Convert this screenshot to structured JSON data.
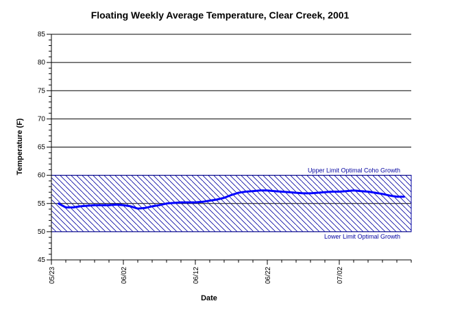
{
  "chart_data": {
    "type": "line",
    "title": "Floating Weekly Average Temperature, Clear Creek, 2001",
    "xlabel": "Date",
    "ylabel": "Temperature (F)",
    "ylim": [
      45,
      85
    ],
    "y_ticks": [
      45,
      50,
      55,
      60,
      65,
      70,
      75,
      80,
      85
    ],
    "y_tick_labels": [
      "45",
      "50",
      "55",
      "60",
      "65",
      "70",
      "75",
      "80",
      "85"
    ],
    "x_range": [
      "2001-05-23",
      "2001-07-12"
    ],
    "x_ticks": [
      "2001-05-23",
      "2001-06-02",
      "2001-06-12",
      "2001-06-22",
      "2001-07-02"
    ],
    "x_tick_labels": [
      "05/23",
      "06/02",
      "06/12",
      "06/22",
      "07/02"
    ],
    "grid": true,
    "band": {
      "lower": 50,
      "upper": 60,
      "upper_label": "Upper Limit Optimal Coho Growth",
      "lower_label": "Lower Limit Optimal Growth",
      "color": "#0000a0"
    },
    "series": [
      {
        "color": "#0000ff",
        "x": [
          "2001-05-24",
          "2001-05-25",
          "2001-05-26",
          "2001-05-27",
          "2001-05-28",
          "2001-05-29",
          "2001-05-30",
          "2001-05-31",
          "2001-06-01",
          "2001-06-02",
          "2001-06-03",
          "2001-06-04",
          "2001-06-05",
          "2001-06-06",
          "2001-06-07",
          "2001-06-08",
          "2001-06-09",
          "2001-06-10",
          "2001-06-11",
          "2001-06-12",
          "2001-06-13",
          "2001-06-14",
          "2001-06-15",
          "2001-06-16",
          "2001-06-17",
          "2001-06-18",
          "2001-06-19",
          "2001-06-20",
          "2001-06-21",
          "2001-06-22",
          "2001-06-23",
          "2001-06-24",
          "2001-06-25",
          "2001-06-26",
          "2001-06-27",
          "2001-06-28",
          "2001-06-29",
          "2001-06-30",
          "2001-07-01",
          "2001-07-02",
          "2001-07-03",
          "2001-07-04",
          "2001-07-05",
          "2001-07-06",
          "2001-07-07",
          "2001-07-08",
          "2001-07-09",
          "2001-07-10",
          "2001-07-11"
        ],
        "values": [
          55.0,
          54.3,
          54.3,
          54.5,
          54.6,
          54.7,
          54.7,
          54.7,
          54.8,
          54.7,
          54.5,
          54.1,
          54.2,
          54.5,
          54.7,
          55.0,
          55.1,
          55.2,
          55.2,
          55.2,
          55.3,
          55.5,
          55.7,
          56.0,
          56.5,
          56.9,
          57.1,
          57.2,
          57.3,
          57.3,
          57.2,
          57.1,
          57.0,
          56.9,
          56.8,
          56.8,
          56.9,
          57.0,
          57.1,
          57.1,
          57.2,
          57.3,
          57.2,
          57.1,
          56.9,
          56.7,
          56.4,
          56.2,
          56.2
        ]
      }
    ]
  }
}
